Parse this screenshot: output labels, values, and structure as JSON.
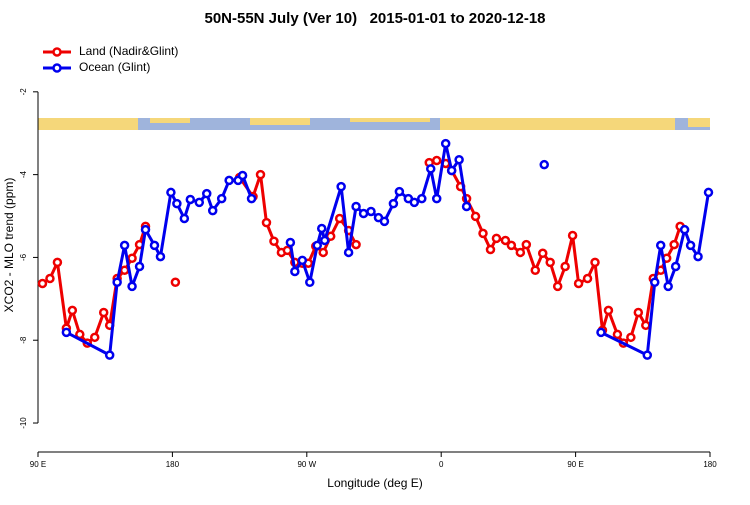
{
  "chart_data": {
    "type": "line",
    "title": "50N-55N July (Ver 10)   2015-01-01 to 2020-12-18",
    "x_label": "Longitude (deg E)",
    "y_label": "XCO2 - MLO trend (ppm)",
    "xlim": [
      90,
      540
    ],
    "xticks": [
      {
        "value": 90,
        "label": "90 E"
      },
      180,
      {
        "value": 270,
        "label": "90 W"
      },
      {
        "value": 360,
        "label": "0"
      },
      {
        "value": 450,
        "label": "90 E"
      },
      {
        "value": 540,
        "label": "180"
      }
    ],
    "ylim": [
      -10.7,
      -0.7
    ],
    "yticks": [
      -2,
      -4,
      -6,
      -8,
      -10
    ],
    "legend": "top-left",
    "series": [
      {
        "name": "Land (Nadir&Glint)",
        "color": "#ee0000",
        "x": [
          93,
          98,
          103,
          109,
          113,
          118,
          123,
          128,
          134,
          138,
          143,
          148,
          153,
          158,
          162,
          null,
          182,
          null,
          225,
          234,
          239,
          243,
          248,
          253,
          257,
          262,
          267,
          271,
          276,
          281,
          286,
          292,
          298,
          303,
          null,
          352,
          357,
          363,
          367,
          373,
          377,
          383,
          388,
          393,
          397,
          403,
          407,
          413,
          417,
          423,
          428,
          433,
          438,
          443,
          448,
          452,
          458,
          463,
          468,
          472,
          478,
          482,
          487,
          492,
          497,
          502,
          507,
          511,
          516,
          520
        ],
        "values": [
          -6.63,
          -6.51,
          -6.12,
          -7.71,
          -7.28,
          -7.86,
          -8.07,
          -7.93,
          -7.33,
          -7.64,
          -6.51,
          -6.31,
          -6.02,
          -5.69,
          -5.25,
          null,
          -6.6,
          null,
          -4.07,
          -4.53,
          -4.0,
          -5.16,
          -5.61,
          -5.88,
          -5.83,
          -6.12,
          -6.14,
          -6.14,
          -5.73,
          -5.88,
          -5.49,
          -5.06,
          -5.35,
          -5.69,
          null,
          -3.71,
          -3.66,
          -3.73,
          -3.9,
          -4.29,
          -4.58,
          -5.01,
          -5.42,
          -5.81,
          -5.54,
          -5.59,
          -5.71,
          -5.88,
          -5.69,
          -6.31,
          -5.9,
          -6.12,
          -6.7,
          -6.22,
          -5.47,
          -6.63,
          -6.51,
          -6.12,
          -7.76,
          -7.28,
          -7.86,
          -8.07,
          -7.93,
          -7.33,
          -7.64,
          -6.51,
          -6.31,
          -6.02,
          -5.69,
          -5.25
        ]
      },
      {
        "name": "Ocean (Glint)",
        "color": "#0000ee",
        "x": [
          109,
          138,
          143,
          148,
          153,
          158,
          162,
          168,
          172,
          179,
          183,
          188,
          192,
          198,
          203,
          207,
          213,
          218,
          224,
          227,
          233,
          null,
          259,
          262,
          267,
          272,
          277,
          280,
          282,
          293,
          298,
          303,
          308,
          313,
          318,
          322,
          328,
          332,
          338,
          342,
          347,
          353,
          357,
          363,
          367,
          372,
          377,
          null,
          429,
          null,
          467,
          498,
          503,
          507,
          512,
          517,
          523,
          527,
          532,
          539
        ],
        "values": [
          -7.81,
          -8.36,
          -6.6,
          -5.71,
          -6.7,
          -6.22,
          -5.33,
          -5.71,
          -5.98,
          -4.43,
          -4.7,
          -5.06,
          -4.6,
          -4.67,
          -4.46,
          -4.87,
          -4.58,
          -4.14,
          -4.14,
          -4.02,
          -4.58,
          null,
          -5.64,
          -6.34,
          -6.07,
          -6.6,
          -5.71,
          -5.3,
          -5.59,
          -4.29,
          -5.88,
          -4.77,
          -4.94,
          -4.89,
          -5.04,
          -5.13,
          -4.7,
          -4.41,
          -4.58,
          -4.67,
          -4.58,
          -3.86,
          -4.58,
          -3.25,
          -3.9,
          -3.64,
          -4.77,
          null,
          -3.76,
          null,
          -7.81,
          -8.36,
          -6.6,
          -5.71,
          -6.7,
          -6.22,
          -5.33,
          -5.71,
          -5.98,
          -4.43
        ]
      }
    ]
  }
}
